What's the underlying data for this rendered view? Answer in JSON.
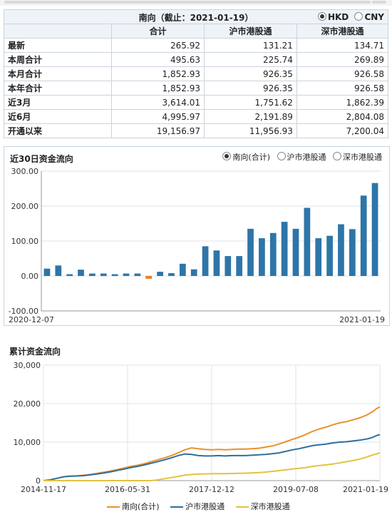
{
  "summary": {
    "title": "南向（截止：2021-01-19）",
    "currency_options": [
      "HKD",
      "CNY"
    ],
    "currency_selected": "HKD",
    "columns": [
      "合计",
      "沪市港股通",
      "深市港股通"
    ],
    "rows": [
      {
        "label": "最新",
        "values": [
          "265.92",
          "131.21",
          "134.71"
        ]
      },
      {
        "label": "本周合计",
        "values": [
          "495.63",
          "225.74",
          "269.89"
        ]
      },
      {
        "label": "本月合计",
        "values": [
          "1,852.93",
          "926.35",
          "926.58"
        ]
      },
      {
        "label": "本年合计",
        "values": [
          "1,852.93",
          "926.35",
          "926.58"
        ]
      },
      {
        "label": "近3月",
        "values": [
          "3,614.01",
          "1,751.62",
          "1,862.39"
        ]
      },
      {
        "label": "近6月",
        "values": [
          "4,995.97",
          "2,191.89",
          "2,804.08"
        ]
      },
      {
        "label": "开通以来",
        "values": [
          "19,156.97",
          "11,956.93",
          "7,200.04"
        ]
      }
    ]
  },
  "chart_data": [
    {
      "type": "bar",
      "title": "近30日资金流向",
      "legend_options": [
        "南向(合计)",
        "沪市港股通",
        "深市港股通"
      ],
      "legend_selected": "南向(合计)",
      "x_labels": [
        "2020-12-07",
        "2021-01-19"
      ],
      "y_ticks": [
        "300.00",
        "200.00",
        "100.00",
        "0.00",
        "-100.00"
      ],
      "ylim": [
        -100,
        300
      ],
      "grid": true,
      "values": [
        21,
        30,
        5,
        18,
        7,
        7,
        5,
        7,
        7,
        -8,
        12,
        8,
        35,
        19,
        85,
        73,
        57,
        57,
        135,
        108,
        123,
        155,
        135,
        195,
        108,
        115,
        148,
        134,
        230,
        266
      ],
      "colors": {
        "positive": "#2e75a8",
        "negative": "#e67e22"
      }
    },
    {
      "type": "line",
      "title": "累计资金流向",
      "x_labels": [
        "2014-11-17",
        "2016-05-31",
        "2017-12-12",
        "2019-07-08",
        "2021-01-19"
      ],
      "y_ticks": [
        "30,000",
        "20,000",
        "10,000",
        "0"
      ],
      "ylim": [
        0,
        30000
      ],
      "grid": true,
      "legend_position": "bottom",
      "x": [
        0,
        2,
        4,
        6,
        8,
        10,
        12,
        14,
        16,
        18,
        20,
        22,
        24,
        26,
        28,
        30,
        32,
        34,
        36,
        38,
        40,
        42,
        44,
        46,
        48,
        50,
        52,
        54,
        56,
        58,
        60,
        62,
        64,
        66,
        68,
        70,
        72,
        74,
        76,
        78,
        80,
        82,
        84,
        86,
        88,
        90,
        92,
        94,
        96,
        97,
        98,
        99,
        100
      ],
      "series": [
        {
          "name": "南向(合计)",
          "color": "#e8912d",
          "values": [
            0,
            200,
            600,
            1000,
            1200,
            1250,
            1400,
            1600,
            1900,
            2200,
            2500,
            2900,
            3300,
            3700,
            4000,
            4400,
            4900,
            5400,
            5900,
            6500,
            7200,
            8000,
            8500,
            8300,
            8100,
            8000,
            8100,
            8000,
            8100,
            8200,
            8200,
            8300,
            8400,
            8700,
            9000,
            9500,
            10100,
            10700,
            11300,
            12000,
            12800,
            13400,
            13900,
            14500,
            15000,
            15300,
            15800,
            16300,
            17000,
            17500,
            18000,
            18700,
            19157
          ]
        },
        {
          "name": "沪市港股通",
          "color": "#2e6f9e",
          "values": [
            0,
            200,
            600,
            1000,
            1150,
            1200,
            1300,
            1500,
            1750,
            2000,
            2300,
            2650,
            3000,
            3400,
            3700,
            4100,
            4500,
            4950,
            5400,
            5900,
            6500,
            6900,
            6800,
            6500,
            6400,
            6400,
            6500,
            6400,
            6500,
            6500,
            6500,
            6600,
            6700,
            6800,
            7000,
            7200,
            7600,
            8000,
            8300,
            8700,
            9100,
            9300,
            9500,
            9800,
            10000,
            10100,
            10300,
            10500,
            10800,
            11000,
            11300,
            11700,
            11957
          ]
        },
        {
          "name": "深市港股通",
          "color": "#e3c23f",
          "values": [
            0,
            0,
            0,
            0,
            0,
            0,
            0,
            0,
            0,
            0,
            0,
            0,
            0,
            0,
            0,
            0,
            0,
            200,
            500,
            800,
            1100,
            1400,
            1600,
            1700,
            1750,
            1800,
            1800,
            1800,
            1850,
            1900,
            1950,
            2000,
            2100,
            2200,
            2400,
            2600,
            2800,
            3000,
            3200,
            3400,
            3700,
            3900,
            4100,
            4300,
            4600,
            4900,
            5200,
            5600,
            6100,
            6400,
            6700,
            6950,
            7200
          ]
        }
      ]
    }
  ]
}
